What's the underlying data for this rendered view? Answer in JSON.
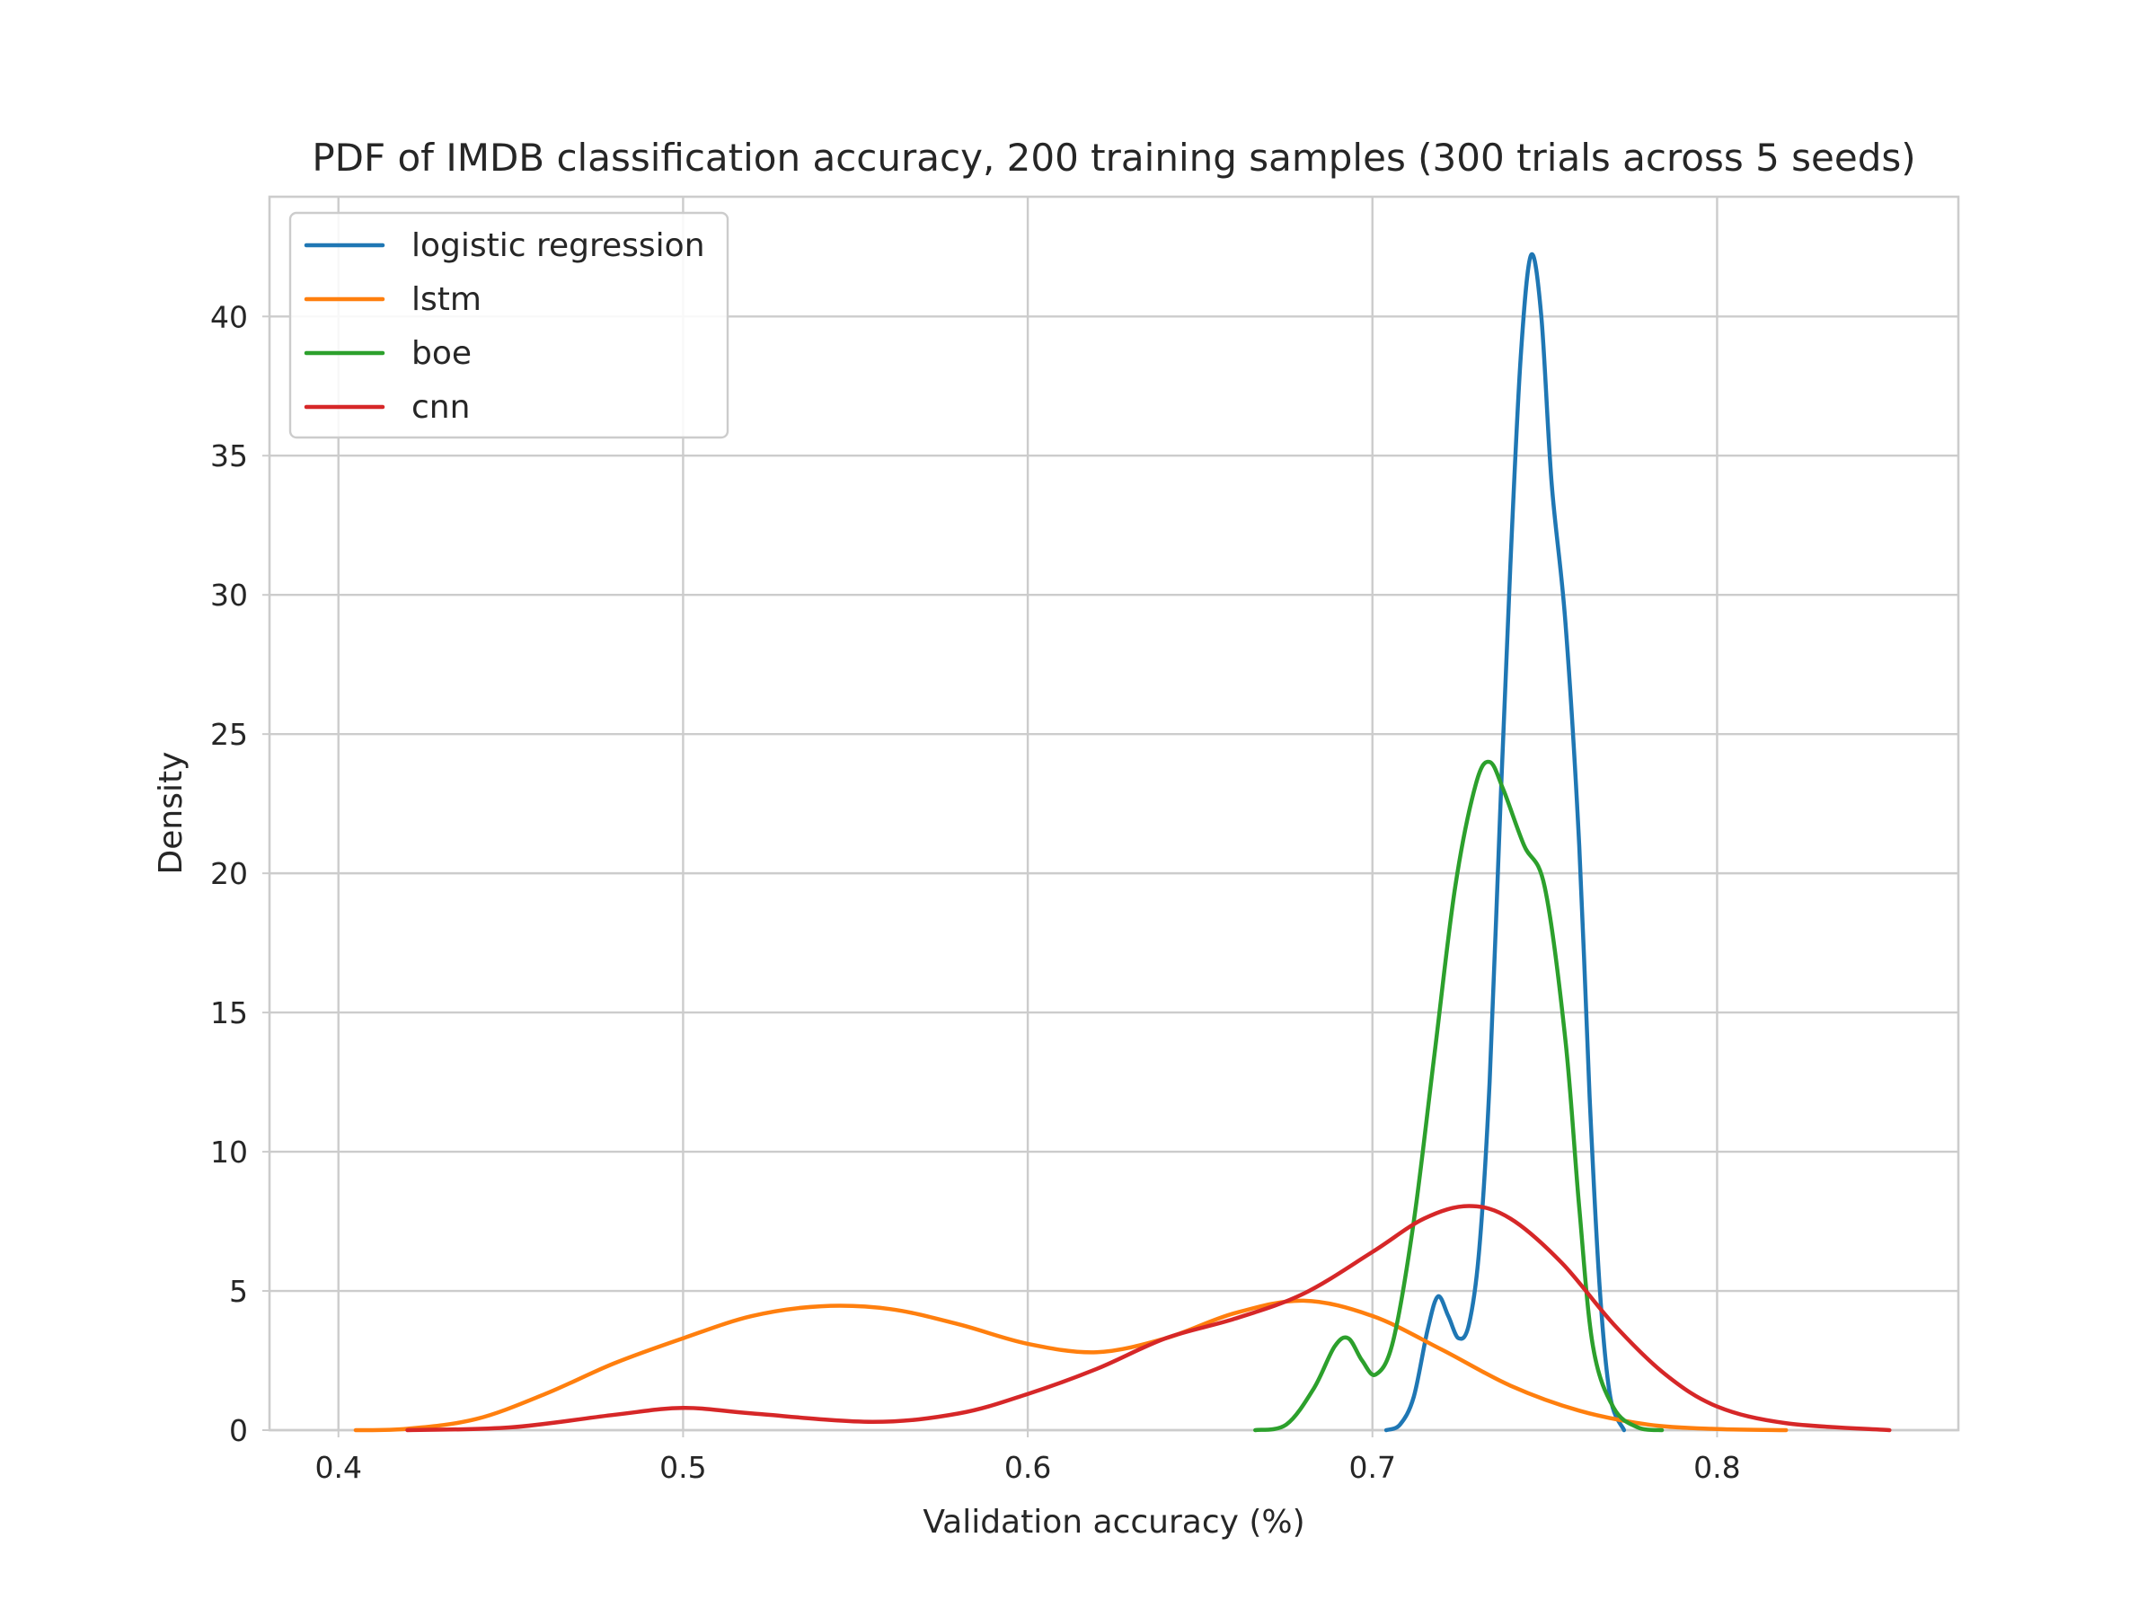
{
  "chart_data": {
    "type": "line",
    "title": "PDF of IMDB classification accuracy, 200 training samples (300 trials across 5 seeds)",
    "xlabel": "Validation accuracy (%)",
    "ylabel": "Density",
    "xlim": [
      0.38,
      0.87
    ],
    "ylim": [
      0,
      44.3
    ],
    "xticks": [
      0.4,
      0.5,
      0.6,
      0.7,
      0.8
    ],
    "xtick_labels": [
      "0.4",
      "0.5",
      "0.6",
      "0.7",
      "0.8"
    ],
    "yticks": [
      0,
      5,
      10,
      15,
      20,
      25,
      30,
      35,
      40
    ],
    "ytick_labels": [
      "0",
      "5",
      "10",
      "15",
      "20",
      "25",
      "30",
      "35",
      "40"
    ],
    "grid": true,
    "legend_position": "top-left",
    "series": [
      {
        "name": "logistic regression",
        "color": "#1f77b4",
        "points": [
          [
            0.704,
            0.0
          ],
          [
            0.708,
            0.2
          ],
          [
            0.712,
            1.2
          ],
          [
            0.716,
            3.6
          ],
          [
            0.719,
            4.8
          ],
          [
            0.722,
            4.1
          ],
          [
            0.725,
            3.3
          ],
          [
            0.728,
            3.8
          ],
          [
            0.731,
            6.5
          ],
          [
            0.734,
            12.5
          ],
          [
            0.737,
            22.0
          ],
          [
            0.74,
            31.0
          ],
          [
            0.743,
            38.5
          ],
          [
            0.746,
            42.2
          ],
          [
            0.749,
            40.0
          ],
          [
            0.752,
            34.0
          ],
          [
            0.756,
            29.0
          ],
          [
            0.76,
            21.0
          ],
          [
            0.763,
            12.0
          ],
          [
            0.766,
            5.0
          ],
          [
            0.769,
            1.2
          ],
          [
            0.773,
            0.0
          ]
        ]
      },
      {
        "name": "lstm",
        "color": "#ff7f0e",
        "points": [
          [
            0.405,
            0.0
          ],
          [
            0.42,
            0.05
          ],
          [
            0.44,
            0.4
          ],
          [
            0.46,
            1.3
          ],
          [
            0.48,
            2.4
          ],
          [
            0.5,
            3.3
          ],
          [
            0.52,
            4.1
          ],
          [
            0.54,
            4.45
          ],
          [
            0.56,
            4.35
          ],
          [
            0.58,
            3.8
          ],
          [
            0.6,
            3.1
          ],
          [
            0.62,
            2.8
          ],
          [
            0.64,
            3.3
          ],
          [
            0.66,
            4.2
          ],
          [
            0.68,
            4.65
          ],
          [
            0.7,
            4.1
          ],
          [
            0.72,
            2.9
          ],
          [
            0.74,
            1.6
          ],
          [
            0.76,
            0.7
          ],
          [
            0.78,
            0.2
          ],
          [
            0.8,
            0.04
          ],
          [
            0.82,
            0.0
          ]
        ]
      },
      {
        "name": "boe",
        "color": "#2ca02c",
        "points": [
          [
            0.666,
            0.0
          ],
          [
            0.675,
            0.2
          ],
          [
            0.683,
            1.5
          ],
          [
            0.689,
            3.0
          ],
          [
            0.693,
            3.3
          ],
          [
            0.697,
            2.5
          ],
          [
            0.701,
            2.0
          ],
          [
            0.706,
            3.2
          ],
          [
            0.712,
            7.5
          ],
          [
            0.718,
            13.5
          ],
          [
            0.724,
            19.5
          ],
          [
            0.73,
            23.2
          ],
          [
            0.734,
            24.0
          ],
          [
            0.738,
            23.0
          ],
          [
            0.744,
            21.0
          ],
          [
            0.75,
            19.5
          ],
          [
            0.756,
            14.0
          ],
          [
            0.76,
            8.0
          ],
          [
            0.764,
            3.0
          ],
          [
            0.77,
            0.8
          ],
          [
            0.777,
            0.1
          ],
          [
            0.784,
            0.0
          ]
        ]
      },
      {
        "name": "cnn",
        "color": "#d62728",
        "points": [
          [
            0.42,
            0.0
          ],
          [
            0.45,
            0.1
          ],
          [
            0.48,
            0.55
          ],
          [
            0.5,
            0.8
          ],
          [
            0.52,
            0.6
          ],
          [
            0.555,
            0.3
          ],
          [
            0.58,
            0.6
          ],
          [
            0.6,
            1.3
          ],
          [
            0.62,
            2.2
          ],
          [
            0.64,
            3.3
          ],
          [
            0.66,
            4.0
          ],
          [
            0.68,
            4.9
          ],
          [
            0.7,
            6.4
          ],
          [
            0.715,
            7.6
          ],
          [
            0.728,
            8.05
          ],
          [
            0.74,
            7.6
          ],
          [
            0.755,
            6.0
          ],
          [
            0.77,
            3.8
          ],
          [
            0.785,
            2.0
          ],
          [
            0.8,
            0.85
          ],
          [
            0.82,
            0.25
          ],
          [
            0.85,
            0.0
          ]
        ]
      }
    ]
  }
}
